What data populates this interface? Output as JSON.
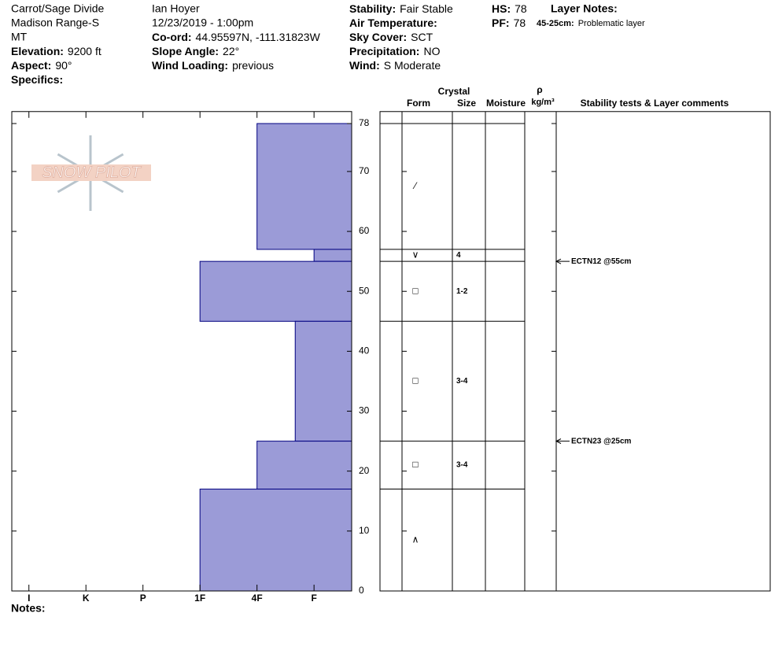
{
  "header": {
    "col1": [
      "Carrot/Sage Divide",
      "Madison Range-S",
      "MT"
    ],
    "col1_fields": [
      {
        "label": "Elevation:",
        "value": "9200 ft"
      },
      {
        "label": "Aspect:",
        "value": "90°"
      },
      {
        "label": "Specifics:"
      }
    ],
    "col2": [
      "Ian Hoyer",
      "12/23/2019 - 1:00pm"
    ],
    "col2_fields": [
      {
        "label": "Co-ord:",
        "value": "44.95597N, -111.31823W"
      },
      {
        "label": "Slope Angle:",
        "value": "22°"
      },
      {
        "label": "Wind Loading:",
        "value": "previous"
      }
    ],
    "col3_fields": [
      {
        "label": "Stability:",
        "value": "Fair Stable"
      },
      {
        "label": "Air Temperature:"
      },
      {
        "label": "Sky Cover:",
        "value": "SCT"
      },
      {
        "label": "Precipitation:",
        "value": "NO"
      },
      {
        "label": "Wind:",
        "value": "S Moderate"
      }
    ],
    "col4_fields": [
      {
        "label": "HS:",
        "value": "78"
      },
      {
        "label": "PF:",
        "value": "78"
      }
    ],
    "layer_notes_title": "Layer Notes:",
    "layer_note": {
      "label": "45-25cm:",
      "value": "Problematic layer"
    },
    "logo": "SNOW PILOT",
    "notes": "Notes:"
  },
  "table_headers": {
    "crystal": "Crystal",
    "form": "Form",
    "size": "Size",
    "moisture": "Moisture",
    "rho": "ρ",
    "density_unit": "kg/m³",
    "comments": "Stability tests & Layer comments"
  },
  "chart_data": {
    "type": "snow-profile",
    "ylim": [
      0,
      80
    ],
    "yticks": [
      0,
      10,
      20,
      30,
      40,
      50,
      60,
      70,
      78
    ],
    "xlim": [
      -0.3,
      5.66
    ],
    "xticks": [
      {
        "value": 0,
        "label": "I"
      },
      {
        "value": 1,
        "label": "K"
      },
      {
        "value": 2,
        "label": "P"
      },
      {
        "value": 3,
        "label": "1F"
      },
      {
        "value": 4,
        "label": "4F"
      },
      {
        "value": 5,
        "label": "F"
      }
    ],
    "color": "#9b9bd7",
    "layers": [
      {
        "top": 78,
        "bottom": 57,
        "hardness": 4,
        "form": "⁄"
      },
      {
        "top": 57,
        "bottom": 55,
        "hardness": 5,
        "form": "∨",
        "size": "4"
      },
      {
        "top": 55,
        "bottom": 45,
        "hardness": 3,
        "form": "□",
        "size": "1-2"
      },
      {
        "top": 45,
        "bottom": 25,
        "hardness": 4.67,
        "form": "□",
        "size": "3-4"
      },
      {
        "top": 25,
        "bottom": 17,
        "hardness": 4,
        "form": "□",
        "size": "3-4"
      },
      {
        "top": 17,
        "bottom": 0,
        "hardness": 3,
        "form": "∧"
      }
    ],
    "tests": [
      {
        "label": "ECTN12 @55cm",
        "depth": 55
      },
      {
        "label": "ECTN23 @25cm",
        "depth": 25
      }
    ]
  }
}
